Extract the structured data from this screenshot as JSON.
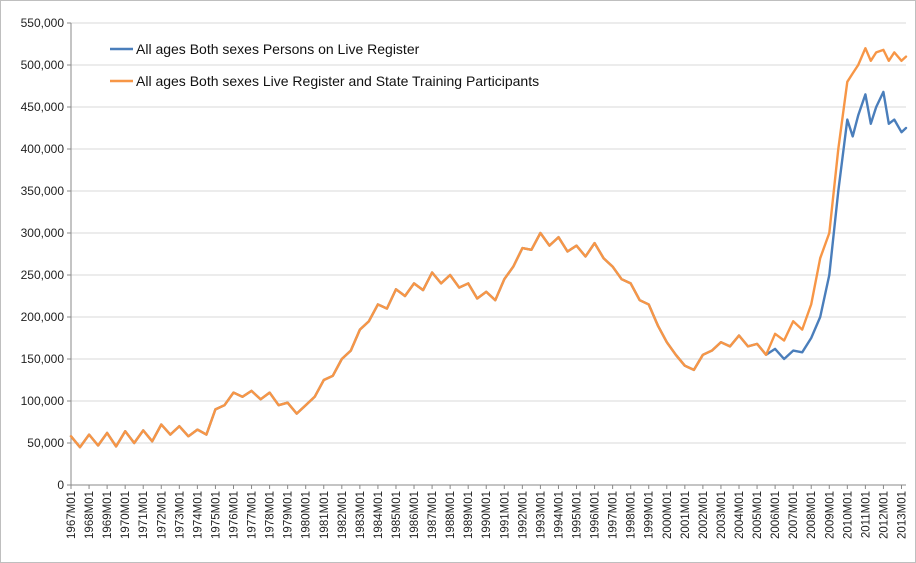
{
  "chart_data": {
    "type": "line",
    "title": "",
    "xlabel": "",
    "ylabel": "",
    "ylim": [
      0,
      550000
    ],
    "yticks": [
      "0",
      "50,000",
      "100,000",
      "150,000",
      "200,000",
      "250,000",
      "300,000",
      "350,000",
      "400,000",
      "450,000",
      "500,000",
      "550,000"
    ],
    "ytick_values": [
      0,
      50000,
      100000,
      150000,
      200000,
      250000,
      300000,
      350000,
      400000,
      450000,
      500000,
      550000
    ],
    "xticks": [
      "1967M01",
      "1968M01",
      "1969M01",
      "1970M01",
      "1971M01",
      "1972M01",
      "1973M01",
      "1974M01",
      "1975M01",
      "1976M01",
      "1977M01",
      "1978M01",
      "1979M01",
      "1980M01",
      "1981M01",
      "1982M01",
      "1983M01",
      "1984M01",
      "1985M01",
      "1986M01",
      "1987M01",
      "1988M01",
      "1989M01",
      "1990M01",
      "1991M01",
      "1992M01",
      "1993M01",
      "1994M01",
      "1995M01",
      "1996M01",
      "1997M01",
      "1998M01",
      "1999M01",
      "2000M01",
      "2001M01",
      "2002M01",
      "2003M01",
      "2004M01",
      "2005M01",
      "2006M01",
      "2007M01",
      "2008M01",
      "2009M01",
      "2010M01",
      "2011M01",
      "2012M01",
      "2013M01"
    ],
    "xtick_values": [
      1967,
      1968,
      1969,
      1970,
      1971,
      1972,
      1973,
      1974,
      1975,
      1976,
      1977,
      1978,
      1979,
      1980,
      1981,
      1982,
      1983,
      1984,
      1985,
      1986,
      1987,
      1988,
      1989,
      1990,
      1991,
      1992,
      1993,
      1994,
      1995,
      1996,
      1997,
      1998,
      1999,
      2000,
      2001,
      2002,
      2003,
      2004,
      2005,
      2006,
      2007,
      2008,
      2009,
      2010,
      2011,
      2012,
      2013
    ],
    "xlim": [
      1967,
      2013.25
    ],
    "grid": "horizontal",
    "legend_position": "top-left",
    "series": [
      {
        "name": "All ages Both sexes Persons on Live Register",
        "color": "#4a7ebb",
        "points": [
          [
            1967,
            58000
          ],
          [
            1967.5,
            45000
          ],
          [
            1968,
            60000
          ],
          [
            1968.5,
            47000
          ],
          [
            1969,
            62000
          ],
          [
            1969.5,
            46000
          ],
          [
            1970,
            64000
          ],
          [
            1970.5,
            50000
          ],
          [
            1971,
            65000
          ],
          [
            1971.5,
            52000
          ],
          [
            1972,
            72000
          ],
          [
            1972.5,
            60000
          ],
          [
            1973,
            70000
          ],
          [
            1973.5,
            58000
          ],
          [
            1974,
            66000
          ],
          [
            1974.5,
            60000
          ],
          [
            1975,
            90000
          ],
          [
            1975.5,
            95000
          ],
          [
            1976,
            110000
          ],
          [
            1976.5,
            105000
          ],
          [
            1977,
            112000
          ],
          [
            1977.5,
            102000
          ],
          [
            1978,
            110000
          ],
          [
            1978.5,
            95000
          ],
          [
            1979,
            98000
          ],
          [
            1979.5,
            85000
          ],
          [
            1980,
            95000
          ],
          [
            1980.5,
            105000
          ],
          [
            1981,
            125000
          ],
          [
            1981.5,
            130000
          ],
          [
            1982,
            150000
          ],
          [
            1982.5,
            160000
          ],
          [
            1983,
            185000
          ],
          [
            1983.5,
            195000
          ],
          [
            1984,
            215000
          ],
          [
            1984.5,
            210000
          ],
          [
            1985,
            233000
          ],
          [
            1985.5,
            225000
          ],
          [
            1986,
            240000
          ],
          [
            1986.5,
            232000
          ],
          [
            1987,
            253000
          ],
          [
            1987.5,
            240000
          ],
          [
            1988,
            250000
          ],
          [
            1988.5,
            235000
          ],
          [
            1989,
            240000
          ],
          [
            1989.5,
            222000
          ],
          [
            1990,
            230000
          ],
          [
            1990.5,
            220000
          ],
          [
            1991,
            245000
          ],
          [
            1991.5,
            260000
          ],
          [
            1992,
            282000
          ],
          [
            1992.5,
            280000
          ],
          [
            1993,
            300000
          ],
          [
            1993.5,
            285000
          ],
          [
            1994,
            295000
          ],
          [
            1994.5,
            278000
          ],
          [
            1995,
            285000
          ],
          [
            1995.5,
            272000
          ],
          [
            1996,
            288000
          ],
          [
            1996.5,
            270000
          ],
          [
            1997,
            260000
          ],
          [
            1997.5,
            245000
          ],
          [
            1998,
            240000
          ],
          [
            1998.5,
            220000
          ],
          [
            1999,
            215000
          ],
          [
            1999.5,
            190000
          ],
          [
            2000,
            170000
          ],
          [
            2000.5,
            155000
          ],
          [
            2001,
            142000
          ],
          [
            2001.5,
            137000
          ],
          [
            2002,
            155000
          ],
          [
            2002.5,
            160000
          ],
          [
            2003,
            170000
          ],
          [
            2003.5,
            165000
          ],
          [
            2004,
            178000
          ],
          [
            2004.5,
            165000
          ],
          [
            2005,
            168000
          ],
          [
            2005.5,
            155000
          ],
          [
            2006,
            162000
          ],
          [
            2006.5,
            150000
          ],
          [
            2007,
            160000
          ],
          [
            2007.5,
            158000
          ],
          [
            2008,
            175000
          ],
          [
            2008.5,
            200000
          ],
          [
            2009,
            250000
          ],
          [
            2009.5,
            350000
          ],
          [
            2010,
            435000
          ],
          [
            2010.3,
            415000
          ],
          [
            2010.6,
            440000
          ],
          [
            2011,
            465000
          ],
          [
            2011.3,
            430000
          ],
          [
            2011.6,
            450000
          ],
          [
            2012,
            468000
          ],
          [
            2012.3,
            430000
          ],
          [
            2012.6,
            435000
          ],
          [
            2013,
            420000
          ],
          [
            2013.25,
            425000
          ]
        ]
      },
      {
        "name": "All ages Both sexes Live Register and State Training Participants",
        "color": "#f79646",
        "points": [
          [
            1967,
            58000
          ],
          [
            1967.5,
            45000
          ],
          [
            1968,
            60000
          ],
          [
            1968.5,
            47000
          ],
          [
            1969,
            62000
          ],
          [
            1969.5,
            46000
          ],
          [
            1970,
            64000
          ],
          [
            1970.5,
            50000
          ],
          [
            1971,
            65000
          ],
          [
            1971.5,
            52000
          ],
          [
            1972,
            72000
          ],
          [
            1972.5,
            60000
          ],
          [
            1973,
            70000
          ],
          [
            1973.5,
            58000
          ],
          [
            1974,
            66000
          ],
          [
            1974.5,
            60000
          ],
          [
            1975,
            90000
          ],
          [
            1975.5,
            95000
          ],
          [
            1976,
            110000
          ],
          [
            1976.5,
            105000
          ],
          [
            1977,
            112000
          ],
          [
            1977.5,
            102000
          ],
          [
            1978,
            110000
          ],
          [
            1978.5,
            95000
          ],
          [
            1979,
            98000
          ],
          [
            1979.5,
            85000
          ],
          [
            1980,
            95000
          ],
          [
            1980.5,
            105000
          ],
          [
            1981,
            125000
          ],
          [
            1981.5,
            130000
          ],
          [
            1982,
            150000
          ],
          [
            1982.5,
            160000
          ],
          [
            1983,
            185000
          ],
          [
            1983.5,
            195000
          ],
          [
            1984,
            215000
          ],
          [
            1984.5,
            210000
          ],
          [
            1985,
            233000
          ],
          [
            1985.5,
            225000
          ],
          [
            1986,
            240000
          ],
          [
            1986.5,
            232000
          ],
          [
            1987,
            253000
          ],
          [
            1987.5,
            240000
          ],
          [
            1988,
            250000
          ],
          [
            1988.5,
            235000
          ],
          [
            1989,
            240000
          ],
          [
            1989.5,
            222000
          ],
          [
            1990,
            230000
          ],
          [
            1990.5,
            220000
          ],
          [
            1991,
            245000
          ],
          [
            1991.5,
            260000
          ],
          [
            1992,
            282000
          ],
          [
            1992.5,
            280000
          ],
          [
            1993,
            300000
          ],
          [
            1993.5,
            285000
          ],
          [
            1994,
            295000
          ],
          [
            1994.5,
            278000
          ],
          [
            1995,
            285000
          ],
          [
            1995.5,
            272000
          ],
          [
            1996,
            288000
          ],
          [
            1996.5,
            270000
          ],
          [
            1997,
            260000
          ],
          [
            1997.5,
            245000
          ],
          [
            1998,
            240000
          ],
          [
            1998.5,
            220000
          ],
          [
            1999,
            215000
          ],
          [
            1999.5,
            190000
          ],
          [
            2000,
            170000
          ],
          [
            2000.5,
            155000
          ],
          [
            2001,
            142000
          ],
          [
            2001.5,
            137000
          ],
          [
            2002,
            155000
          ],
          [
            2002.5,
            160000
          ],
          [
            2003,
            170000
          ],
          [
            2003.5,
            165000
          ],
          [
            2004,
            178000
          ],
          [
            2004.5,
            165000
          ],
          [
            2005,
            168000
          ],
          [
            2005.5,
            155000
          ],
          [
            2006,
            180000
          ],
          [
            2006.5,
            172000
          ],
          [
            2007,
            195000
          ],
          [
            2007.5,
            185000
          ],
          [
            2008,
            215000
          ],
          [
            2008.5,
            270000
          ],
          [
            2009,
            300000
          ],
          [
            2009.5,
            400000
          ],
          [
            2010,
            480000
          ],
          [
            2010.3,
            490000
          ],
          [
            2010.6,
            500000
          ],
          [
            2011,
            520000
          ],
          [
            2011.3,
            505000
          ],
          [
            2011.6,
            515000
          ],
          [
            2012,
            518000
          ],
          [
            2012.3,
            505000
          ],
          [
            2012.6,
            515000
          ],
          [
            2013,
            505000
          ],
          [
            2013.25,
            510000
          ]
        ]
      }
    ]
  }
}
